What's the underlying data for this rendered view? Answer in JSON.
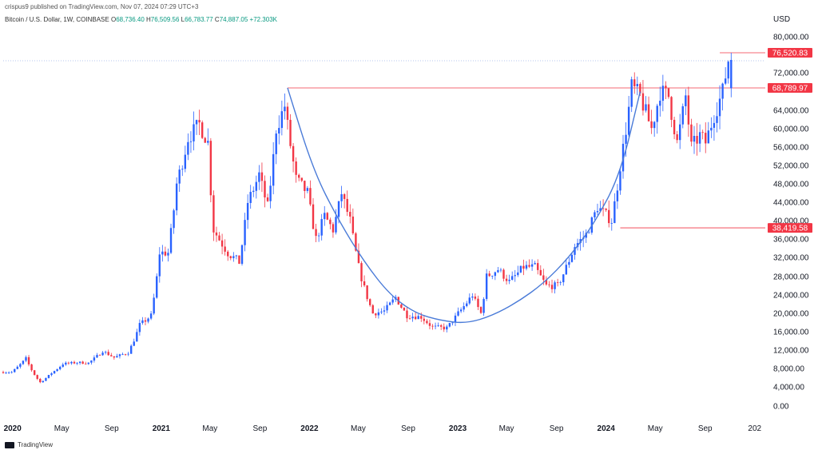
{
  "header": {
    "published": "crispus9 published on TradingView.com, Nov 07, 2024 07:29 UTC+3"
  },
  "symbol": {
    "name": "Bitcoin / U.S. Dollar, 1W, COINBASE",
    "open_label": "O",
    "open": "68,736.40",
    "high_label": "H",
    "high": "76,509.56",
    "low_label": "L",
    "low": "66,783.77",
    "close_label": "C",
    "close": "74,887.05",
    "change": "+",
    "volume": "72.303K"
  },
  "footer": {
    "brand": "TradingView"
  },
  "colors": {
    "up": "#2962ff",
    "down": "#f23645",
    "curve": "#4a7bd8",
    "level": "#f23645"
  },
  "chart_data": {
    "type": "candlestick",
    "title": "Bitcoin / U.S. Dollar, 1W, COINBASE",
    "ylabel": "USD",
    "ylim": [
      -2000,
      86000
    ],
    "yticks": [
      "80,000.00",
      "72,000.00",
      "64,000.00",
      "60,000.00",
      "56,000.00",
      "52,000.00",
      "48,000.00",
      "44,000.00",
      "40,000.00",
      "36,000.00",
      "32,000.00",
      "28,000.00",
      "24,000.00",
      "20,000.00",
      "16,000.00",
      "12,000.00",
      "8,000.00",
      "4,000.00",
      "0.00"
    ],
    "ytick_values": [
      80000,
      72000,
      64000,
      60000,
      56000,
      52000,
      48000,
      44000,
      40000,
      36000,
      32000,
      28000,
      24000,
      20000,
      16000,
      12000,
      8000,
      4000,
      0
    ],
    "xticks": [
      {
        "label": "2020",
        "date": "2020-01-01",
        "bold": true
      },
      {
        "label": "May",
        "date": "2020-05-01",
        "bold": false
      },
      {
        "label": "Sep",
        "date": "2020-09-01",
        "bold": false
      },
      {
        "label": "2021",
        "date": "2021-01-01",
        "bold": true
      },
      {
        "label": "May",
        "date": "2021-05-01",
        "bold": false
      },
      {
        "label": "Sep",
        "date": "2021-09-01",
        "bold": false
      },
      {
        "label": "2022",
        "date": "2022-01-01",
        "bold": true
      },
      {
        "label": "May",
        "date": "2022-05-01",
        "bold": false
      },
      {
        "label": "Sep",
        "date": "2022-09-01",
        "bold": false
      },
      {
        "label": "2023",
        "date": "2023-01-01",
        "bold": true
      },
      {
        "label": "May",
        "date": "2023-05-01",
        "bold": false
      },
      {
        "label": "Sep",
        "date": "2023-09-01",
        "bold": false
      },
      {
        "label": "2024",
        "date": "2024-01-01",
        "bold": true
      },
      {
        "label": "May",
        "date": "2024-05-01",
        "bold": false
      },
      {
        "label": "Sep",
        "date": "2024-09-01",
        "bold": false
      },
      {
        "label": "202",
        "date": "2025-01-01",
        "bold": false
      }
    ],
    "price_tags": [
      {
        "label": "76,520.83",
        "value": 76520
      },
      {
        "label": "68,789.97",
        "value": 68790
      },
      {
        "label": "38,419.58",
        "value": 38420
      }
    ],
    "horizontal_levels": [
      {
        "value": 68790,
        "from": "2021-11-08",
        "to": "2024-11-25"
      },
      {
        "value": 38420,
        "from": "2024-02-05",
        "to": "2024-11-25"
      },
      {
        "value": 76520,
        "from": "2024-10-07",
        "to": "2024-11-25"
      }
    ],
    "cup_curve": [
      [
        "2021-11-08",
        68800
      ],
      [
        "2022-01-10",
        51000
      ],
      [
        "2022-03-14",
        40000
      ],
      [
        "2022-05-16",
        31000
      ],
      [
        "2022-07-18",
        24000
      ],
      [
        "2022-09-19",
        20000
      ],
      [
        "2022-11-21",
        18400
      ],
      [
        "2023-01-23",
        17800
      ],
      [
        "2023-03-27",
        19500
      ],
      [
        "2023-05-29",
        22500
      ],
      [
        "2023-07-31",
        26500
      ],
      [
        "2023-10-02",
        32000
      ],
      [
        "2023-12-04",
        39500
      ],
      [
        "2024-02-05",
        50000
      ],
      [
        "2024-03-25",
        68000
      ]
    ],
    "anchors": [
      [
        "2020-01-06",
        7200
      ],
      [
        "2020-02-10",
        10200
      ],
      [
        "2020-03-16",
        5000
      ],
      [
        "2020-04-13",
        7000
      ],
      [
        "2020-05-11",
        9000
      ],
      [
        "2020-06-15",
        9300
      ],
      [
        "2020-07-13",
        9200
      ],
      [
        "2020-08-17",
        11800
      ],
      [
        "2020-09-14",
        10400
      ],
      [
        "2020-10-19",
        11500
      ],
      [
        "2020-11-16",
        17500
      ],
      [
        "2020-12-14",
        19500
      ],
      [
        "2021-01-04",
        33000
      ],
      [
        "2021-01-25",
        33000
      ],
      [
        "2021-02-15",
        48000
      ],
      [
        "2021-03-15",
        58000
      ],
      [
        "2021-04-12",
        61000
      ],
      [
        "2021-05-03",
        57000
      ],
      [
        "2021-05-17",
        38000
      ],
      [
        "2021-06-21",
        33000
      ],
      [
        "2021-07-19",
        31000
      ],
      [
        "2021-08-09",
        44000
      ],
      [
        "2021-09-06",
        50000
      ],
      [
        "2021-09-27",
        43000
      ],
      [
        "2021-10-18",
        60000
      ],
      [
        "2021-11-08",
        65000
      ],
      [
        "2021-12-06",
        49000
      ],
      [
        "2022-01-03",
        46000
      ],
      [
        "2022-01-24",
        36000
      ],
      [
        "2022-02-14",
        41000
      ],
      [
        "2022-03-07",
        38000
      ],
      [
        "2022-03-28",
        46000
      ],
      [
        "2022-04-18",
        40000
      ],
      [
        "2022-05-09",
        30000
      ],
      [
        "2022-06-13",
        20000
      ],
      [
        "2022-07-11",
        20500
      ],
      [
        "2022-08-08",
        23500
      ],
      [
        "2022-09-05",
        19500
      ],
      [
        "2022-10-10",
        19200
      ],
      [
        "2022-11-07",
        17000
      ],
      [
        "2022-12-12",
        16800
      ],
      [
        "2023-01-09",
        20000
      ],
      [
        "2023-02-13",
        24000
      ],
      [
        "2023-03-06",
        20000
      ],
      [
        "2023-03-20",
        28000
      ],
      [
        "2023-04-17",
        29500
      ],
      [
        "2023-05-15",
        26900
      ],
      [
        "2023-06-19",
        30000
      ],
      [
        "2023-07-17",
        30000
      ],
      [
        "2023-08-14",
        26000
      ],
      [
        "2023-09-11",
        26000
      ],
      [
        "2023-10-23",
        34500
      ],
      [
        "2023-11-20",
        37000
      ],
      [
        "2023-12-18",
        43000
      ],
      [
        "2024-01-22",
        40000
      ],
      [
        "2024-02-12",
        52000
      ],
      [
        "2024-03-11",
        69000
      ],
      [
        "2024-04-01",
        67000
      ],
      [
        "2024-04-29",
        60000
      ],
      [
        "2024-05-20",
        68000
      ],
      [
        "2024-06-10",
        67000
      ],
      [
        "2024-07-01",
        57000
      ],
      [
        "2024-07-22",
        67000
      ],
      [
        "2024-08-05",
        56000
      ],
      [
        "2024-08-26",
        58500
      ],
      [
        "2024-09-09",
        57000
      ],
      [
        "2024-09-30",
        63000
      ],
      [
        "2024-10-21",
        68000
      ],
      [
        "2024-11-04",
        74900
      ]
    ]
  }
}
